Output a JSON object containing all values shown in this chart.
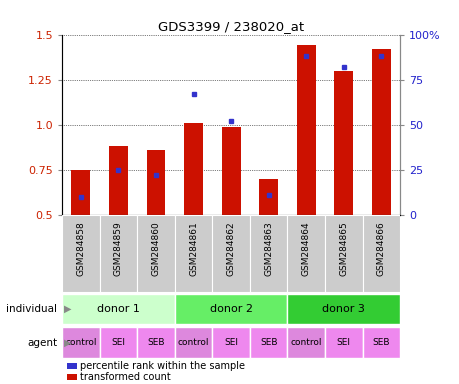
{
  "title": "GDS3399 / 238020_at",
  "samples": [
    "GSM284858",
    "GSM284859",
    "GSM284860",
    "GSM284861",
    "GSM284862",
    "GSM284863",
    "GSM284864",
    "GSM284865",
    "GSM284866"
  ],
  "transformed_count": [
    0.75,
    0.88,
    0.86,
    1.01,
    0.99,
    0.7,
    1.44,
    1.3,
    1.42
  ],
  "percentile_rank": [
    10,
    25,
    22,
    67,
    52,
    11,
    88,
    82,
    88
  ],
  "ylim_left": [
    0.5,
    1.5
  ],
  "ylim_right": [
    0,
    100
  ],
  "yticks_left": [
    0.5,
    0.75,
    1.0,
    1.25,
    1.5
  ],
  "yticks_right": [
    0,
    25,
    50,
    75,
    100
  ],
  "ytick_labels_right": [
    "0",
    "25",
    "50",
    "75",
    "100%"
  ],
  "bar_color": "#cc1100",
  "dot_color": "#3333cc",
  "bar_bottom": 0.5,
  "bar_width": 0.5,
  "sample_band_color": "#cccccc",
  "sample_band_border": "#888888",
  "individuals": [
    {
      "label": "donor 1",
      "span": [
        0,
        3
      ],
      "color": "#ccffcc"
    },
    {
      "label": "donor 2",
      "span": [
        3,
        6
      ],
      "color": "#66ee66"
    },
    {
      "label": "donor 3",
      "span": [
        6,
        9
      ],
      "color": "#33cc33"
    }
  ],
  "agents": [
    "control",
    "SEI",
    "SEB",
    "control",
    "SEI",
    "SEB",
    "control",
    "SEI",
    "SEB"
  ],
  "agent_colors": [
    "#dd88dd",
    "#ee88ee",
    "#ee88ee",
    "#dd88dd",
    "#ee88ee",
    "#ee88ee",
    "#dd88dd",
    "#ee88ee",
    "#ee88ee"
  ],
  "left_label_color": "#cc2200",
  "right_label_color": "#2222cc",
  "legend": [
    {
      "label": "transformed count",
      "color": "#cc1100",
      "marker": "s"
    },
    {
      "label": "percentile rank within the sample",
      "color": "#3333cc",
      "marker": "s"
    }
  ]
}
